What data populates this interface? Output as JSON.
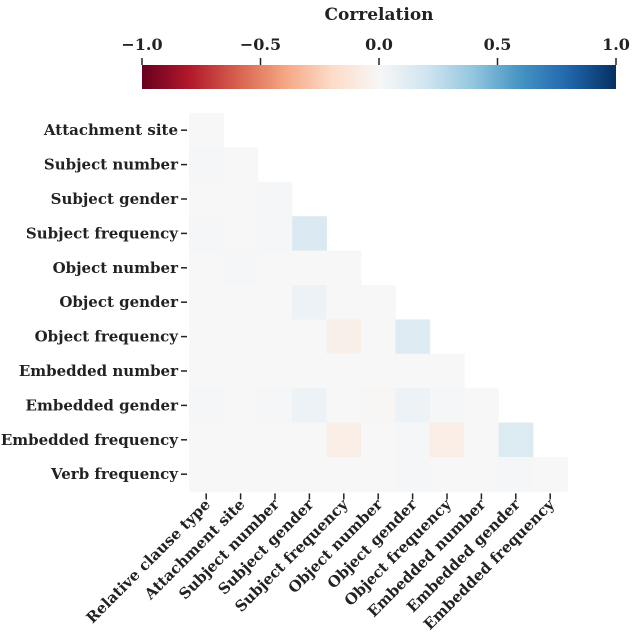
{
  "chart_data": {
    "type": "heatmap",
    "colorbar": {
      "label": "Correlation",
      "ticks": [
        "−1.0",
        "−0.5",
        "0.0",
        "0.5",
        "1.0"
      ],
      "tick_values": [
        -1.0,
        -0.5,
        0.0,
        0.5,
        1.0
      ],
      "range": [
        -1.0,
        1.0
      ],
      "colormap": "RdBu",
      "position": "top"
    },
    "rows": [
      "Attachment site",
      "Subject number",
      "Subject gender",
      "Subject frequency",
      "Object number",
      "Object gender",
      "Object frequency",
      "Embedded number",
      "Embedded gender",
      "Embedded frequency",
      "Verb frequency"
    ],
    "columns": [
      "Relative clause type",
      "Attachment site",
      "Subject number",
      "Subject gender",
      "Subject frequency",
      "Object number",
      "Object gender",
      "Object frequency",
      "Embedded number",
      "Embedded gender",
      "Embedded frequency"
    ],
    "values": [
      [
        0.0
      ],
      [
        0.01,
        0.0
      ],
      [
        0.0,
        0.0,
        0.01
      ],
      [
        0.01,
        0.0,
        0.01,
        0.15
      ],
      [
        0.0,
        0.01,
        0.0,
        0.0,
        0.0
      ],
      [
        0.0,
        0.0,
        0.0,
        0.06,
        0.0,
        0.0
      ],
      [
        0.0,
        0.0,
        0.0,
        0.0,
        -0.06,
        0.0,
        0.13
      ],
      [
        0.0,
        0.0,
        0.0,
        0.0,
        0.0,
        0.0,
        0.0,
        0.0
      ],
      [
        0.01,
        0.0,
        0.01,
        0.06,
        0.0,
        -0.01,
        0.06,
        0.01,
        0.0
      ],
      [
        0.0,
        0.0,
        0.0,
        0.0,
        -0.07,
        0.0,
        0.01,
        -0.07,
        0.0,
        0.14
      ],
      [
        0.0,
        0.0,
        0.0,
        0.0,
        0.0,
        0.0,
        0.01,
        0.0,
        0.0,
        0.01,
        0.0
      ]
    ],
    "mask": "lower-triangle"
  }
}
